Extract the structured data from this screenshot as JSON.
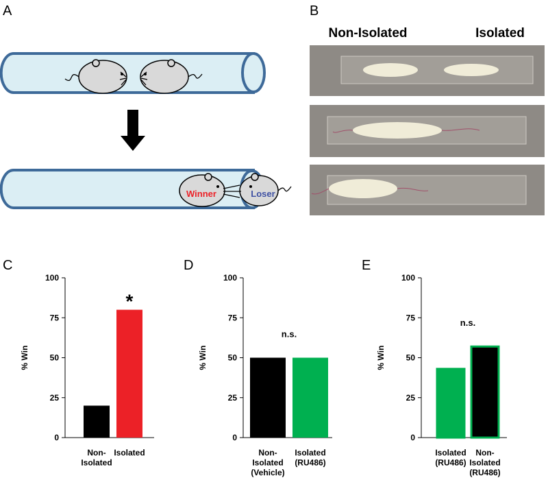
{
  "panel_labels": [
    "A",
    "B",
    "C",
    "D",
    "E"
  ],
  "diagram": {
    "winner": "Winner",
    "loser": "Loser"
  },
  "photos": {
    "left_heading": "Non-Isolated",
    "right_heading": "Isolated"
  },
  "chart_data": [
    {
      "type": "bar",
      "ylabel": "% Win",
      "categories": [
        "Non-\nIsolated",
        "Isolated"
      ],
      "values": [
        20,
        80
      ],
      "colors": [
        "#000000",
        "#ec2127"
      ],
      "annotation": "*",
      "ylim": [
        0,
        100
      ],
      "yticks": [
        0,
        25,
        50,
        75,
        100
      ]
    },
    {
      "type": "bar",
      "ylabel": "% Win",
      "categories": [
        "Non-\nIsolated\n(Vehicle)",
        "Isolated\n(RU486)"
      ],
      "values": [
        50,
        50
      ],
      "colors": [
        "#000000",
        "#00b050"
      ],
      "annotation": "n.s.",
      "ylim": [
        0,
        100
      ],
      "yticks": [
        0,
        25,
        50,
        75,
        100
      ]
    },
    {
      "type": "bar",
      "ylabel": "% Win",
      "categories": [
        "Isolated\n(RU486)",
        "Non-\nIsolated\n(RU486)"
      ],
      "values": [
        43,
        57
      ],
      "colors": [
        "#00b050",
        "#000000"
      ],
      "edge_colors": [
        "#00b050",
        "#00b050"
      ],
      "annotation": "n.s.",
      "ylim": [
        0,
        100
      ],
      "yticks": [
        0,
        25,
        50,
        75,
        100
      ]
    }
  ]
}
